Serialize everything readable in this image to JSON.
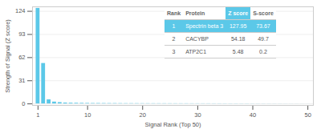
{
  "chart_data": {
    "type": "bar",
    "xlabel": "Signal Rank (Top 50)",
    "ylabel": "Strength of Signal (Z score)",
    "x": [
      1,
      2,
      3,
      4,
      5,
      6,
      7,
      8,
      9,
      10,
      11,
      12,
      13,
      14,
      15,
      16,
      17,
      18,
      19,
      20,
      21,
      22,
      23,
      24,
      25,
      26,
      27,
      28,
      29,
      30,
      31,
      32,
      33,
      34,
      35,
      36,
      37,
      38,
      39,
      40,
      41,
      42,
      43,
      44,
      45,
      46,
      47,
      48,
      49,
      50
    ],
    "values": [
      127.95,
      54.18,
      5.48,
      2.5,
      1.8,
      1.2,
      1.0,
      0.9,
      0.8,
      0.7,
      0.6,
      0.6,
      0.55,
      0.5,
      0.5,
      0.45,
      0.4,
      0.4,
      0.38,
      0.35,
      0.33,
      0.32,
      0.31,
      0.3,
      0.29,
      0.28,
      0.27,
      0.26,
      0.25,
      0.24,
      0.23,
      0.22,
      0.21,
      0.2,
      0.19,
      0.18,
      0.17,
      0.16,
      0.15,
      0.14,
      0.13,
      0.12,
      0.11,
      0.1,
      0.09,
      0.08,
      0.07,
      0.06,
      0.05,
      0.04
    ],
    "color": "#5bc8e8",
    "xlim": [
      0,
      51
    ],
    "ylim": [
      -2,
      130
    ],
    "xticks": [
      1,
      10,
      20,
      30,
      40,
      50
    ],
    "yticks": [
      0,
      31,
      62,
      93,
      124
    ],
    "grid": true,
    "table": {
      "columns": [
        "Rank",
        "Protein",
        "Z score",
        "S-score"
      ],
      "rows": [
        [
          "1",
          "Spectrin beta 3",
          "127.95",
          "73.67"
        ],
        [
          "2",
          "CACYBP",
          "54.18",
          "49.7"
        ],
        [
          "3",
          "ATP2C1",
          "5.48",
          "0.2"
        ]
      ]
    }
  }
}
